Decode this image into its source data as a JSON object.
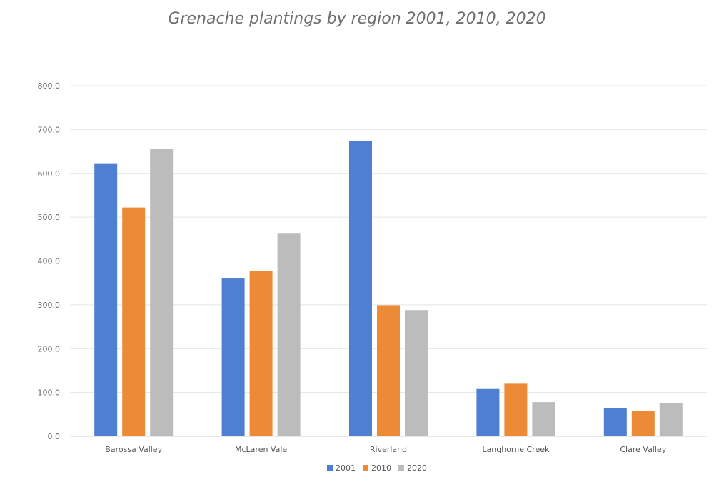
{
  "chart_data": {
    "type": "bar",
    "title": "Grenache plantings by region 2001, 2010, 2020",
    "xlabel": "",
    "ylabel": "",
    "ylim": [
      0,
      800
    ],
    "yticks": [
      0,
      100,
      200,
      300,
      400,
      500,
      600,
      700,
      800
    ],
    "ytick_labels": [
      "0.0",
      "100.0",
      "200.0",
      "300.0",
      "400.0",
      "500.0",
      "600.0",
      "700.0",
      "800.0"
    ],
    "grid": true,
    "legend_position": "bottom",
    "categories": [
      "Barossa Valley",
      "McLaren Vale",
      "Riverland",
      "Langhorne Creek",
      "Clare Valley"
    ],
    "series": [
      {
        "name": "2001",
        "color": "#4f7fd0",
        "values": [
          623,
          360,
          673,
          108,
          64
        ]
      },
      {
        "name": "2010",
        "color": "#ec8a35",
        "values": [
          522,
          378,
          299,
          120,
          58
        ]
      },
      {
        "name": "2020",
        "color": "#bcbcbc",
        "values": [
          655,
          464,
          288,
          78,
          75
        ]
      }
    ]
  }
}
